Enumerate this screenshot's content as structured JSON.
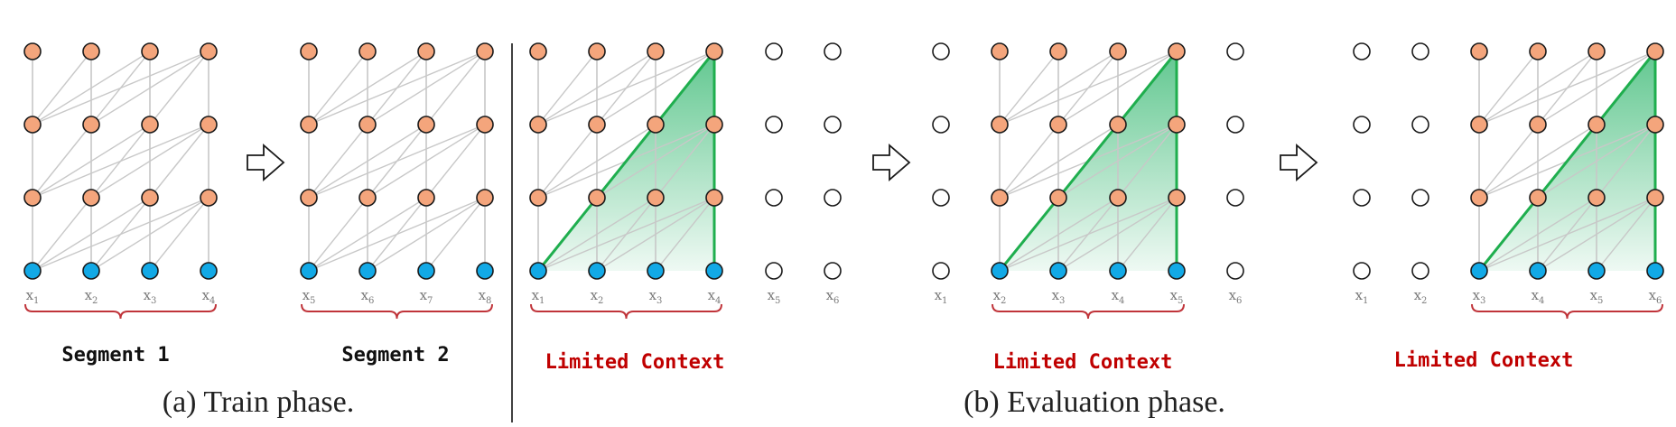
{
  "colors": {
    "hidden_node": "#f4a57c",
    "input_node": "#12a9e6",
    "empty_node": "#ffffff",
    "edge": "#c8c8c8",
    "context_outline": "#1fae4e",
    "context_fill": "#2db56b",
    "brace": "#c0343a",
    "context_label": "#c00000"
  },
  "icons": {
    "arrow": "right-arrow-icon"
  },
  "panels": [
    {
      "kind": "train",
      "x_labels": [
        [
          "x",
          "1"
        ],
        [
          "x",
          "2"
        ],
        [
          "x",
          "3"
        ],
        [
          "x",
          "4"
        ]
      ],
      "label": "Segment 1"
    },
    {
      "kind": "train",
      "x_labels": [
        [
          "x",
          "5"
        ],
        [
          "x",
          "6"
        ],
        [
          "x",
          "7"
        ],
        [
          "x",
          "8"
        ]
      ],
      "label": "Segment 2"
    },
    {
      "kind": "eval",
      "x_labels": [
        [
          "x",
          "1"
        ],
        [
          "x",
          "2"
        ],
        [
          "x",
          "3"
        ],
        [
          "x",
          "4"
        ],
        [
          "x",
          "5"
        ],
        [
          "x",
          "6"
        ]
      ],
      "label": "Limited Context"
    },
    {
      "kind": "eval",
      "x_labels": [
        [
          "x",
          "1"
        ],
        [
          "x",
          "2"
        ],
        [
          "x",
          "3"
        ],
        [
          "x",
          "4"
        ],
        [
          "x",
          "5"
        ],
        [
          "x",
          "6"
        ]
      ],
      "label": "Limited Context"
    },
    {
      "kind": "eval",
      "x_labels": [
        [
          "x",
          "1"
        ],
        [
          "x",
          "2"
        ],
        [
          "x",
          "3"
        ],
        [
          "x",
          "4"
        ],
        [
          "x",
          "5"
        ],
        [
          "x",
          "6"
        ]
      ],
      "label": "Limited Context"
    }
  ],
  "captions": {
    "train": "(a) Train phase.",
    "eval": "(b) Evaluation phase."
  }
}
